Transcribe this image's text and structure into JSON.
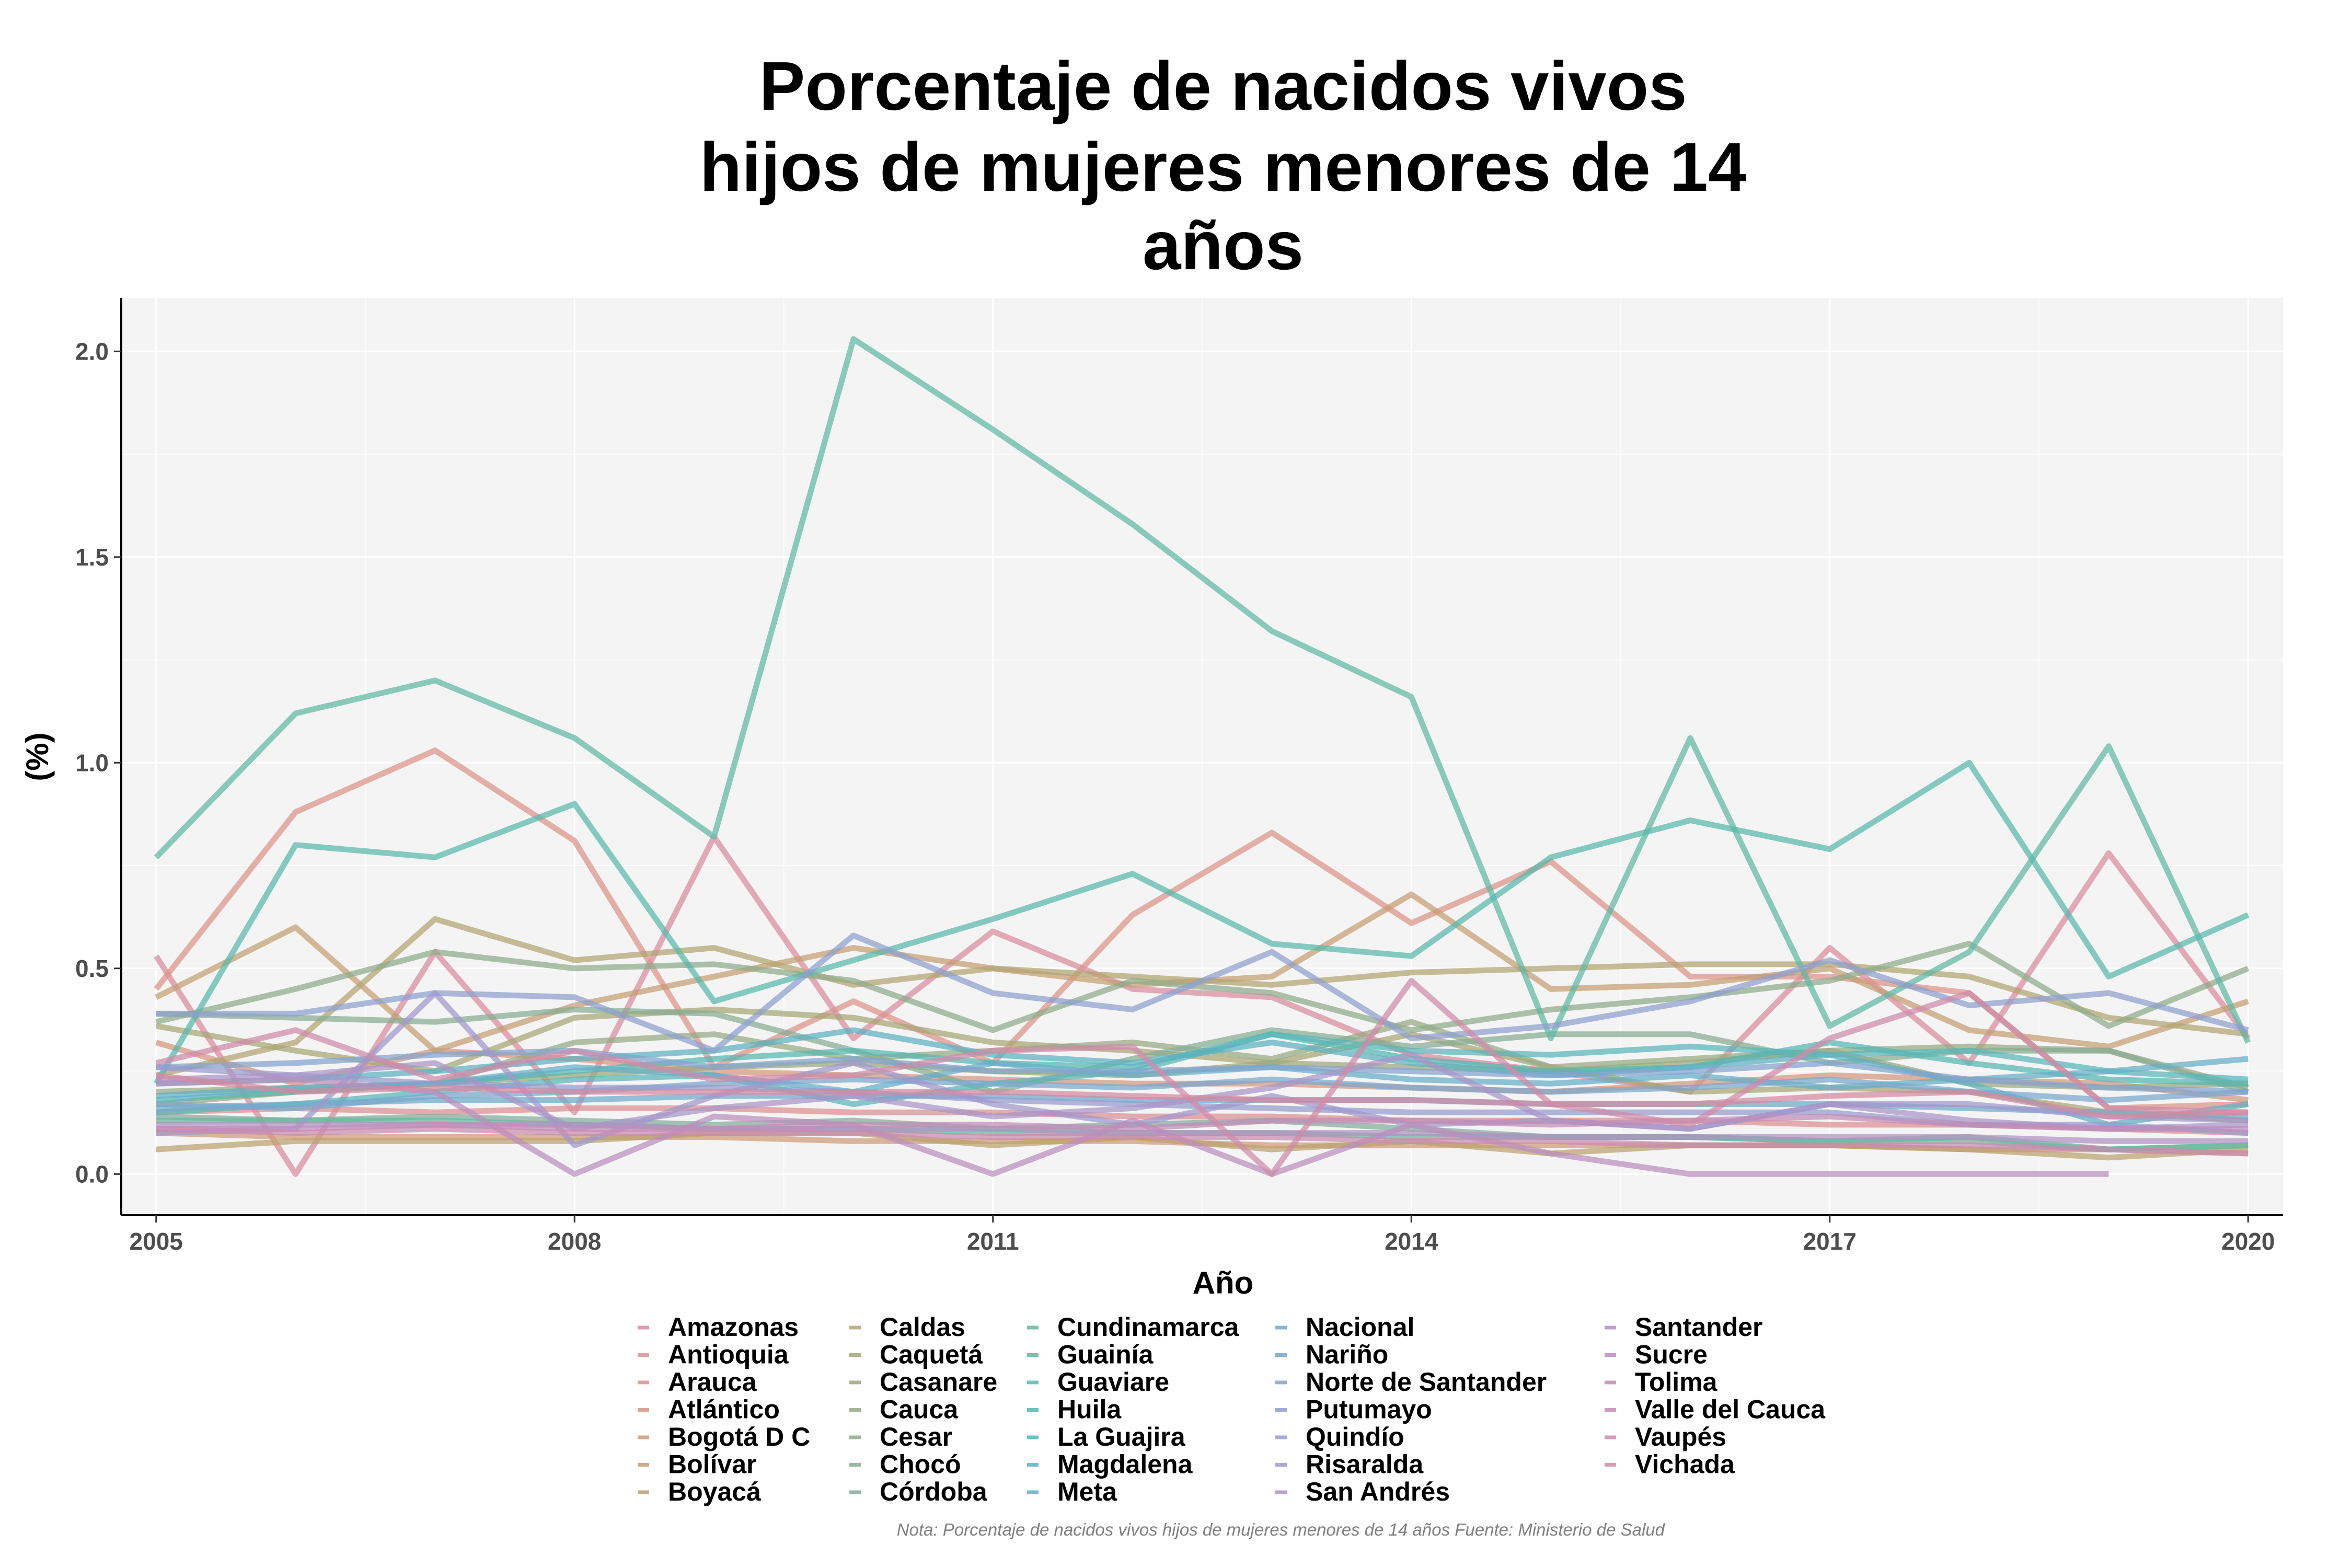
{
  "chart_data": {
    "type": "line",
    "title": [
      "Porcentaje de nacidos vivos",
      "hijos de mujeres menores de 14",
      "años"
    ],
    "xlabel": "Año",
    "ylabel": "(%)",
    "xlim": [
      2004.75,
      2020.25
    ],
    "ylim": [
      -0.1,
      2.13
    ],
    "x_ticks": [
      2005,
      2008,
      2011,
      2014,
      2017,
      2020
    ],
    "y_ticks": [
      0.0,
      0.5,
      1.0,
      1.5,
      2.0
    ],
    "y_tick_labels": [
      "0.0",
      "0.5",
      "1.0",
      "1.5",
      "2.0"
    ],
    "grid": true,
    "legend_position": "bottom",
    "note": "Nota: Porcentaje de nacidos vivos hijos de mujeres menores de 14 años Fuente: Ministerio de Salud",
    "x": [
      2005,
      2006,
      2007,
      2008,
      2009,
      2010,
      2011,
      2012,
      2013,
      2014,
      2015,
      2016,
      2017,
      2018,
      2019,
      2020
    ],
    "series": [
      {
        "name": "Amazonas",
        "color": "#D98A9E",
        "values": [
          0.53,
          0.0,
          0.54,
          0.15,
          0.82,
          0.33,
          0.59,
          0.45,
          0.43,
          0.29,
          0.25,
          0.2,
          0.55,
          0.27,
          0.78,
          0.33
        ]
      },
      {
        "name": "Antioquia",
        "color": "#DC8F93",
        "values": [
          0.15,
          0.16,
          0.15,
          0.16,
          0.16,
          0.15,
          0.15,
          0.14,
          0.14,
          0.13,
          0.13,
          0.13,
          0.12,
          0.12,
          0.11,
          0.1
        ]
      },
      {
        "name": "Arauca",
        "color": "#DB9388",
        "values": [
          0.45,
          0.88,
          1.03,
          0.81,
          0.26,
          0.42,
          0.27,
          0.63,
          0.83,
          0.61,
          0.76,
          0.48,
          0.48,
          0.44,
          0.16,
          0.17
        ]
      },
      {
        "name": "Atlántico",
        "color": "#D6977E",
        "values": [
          0.32,
          0.22,
          0.3,
          0.28,
          0.25,
          0.24,
          0.23,
          0.22,
          0.22,
          0.21,
          0.2,
          0.22,
          0.24,
          0.23,
          0.22,
          0.18
        ]
      },
      {
        "name": "Bogotá D C",
        "color": "#CE9B77",
        "values": [
          0.1,
          0.09,
          0.09,
          0.09,
          0.09,
          0.08,
          0.08,
          0.08,
          0.07,
          0.07,
          0.07,
          0.07,
          0.07,
          0.06,
          0.06,
          0.05
        ]
      },
      {
        "name": "Bolívar",
        "color": "#C59E72",
        "values": [
          0.43,
          0.6,
          0.3,
          0.41,
          0.48,
          0.55,
          0.5,
          0.46,
          0.48,
          0.68,
          0.45,
          0.46,
          0.5,
          0.35,
          0.31,
          0.42
        ]
      },
      {
        "name": "Boyacá",
        "color": "#BBA16F",
        "values": [
          0.06,
          0.08,
          0.08,
          0.08,
          0.1,
          0.1,
          0.07,
          0.09,
          0.06,
          0.08,
          0.05,
          0.07,
          0.07,
          0.06,
          0.04,
          0.06
        ]
      },
      {
        "name": "Caldas",
        "color": "#B2A470",
        "values": [
          0.24,
          0.32,
          0.62,
          0.52,
          0.55,
          0.46,
          0.5,
          0.48,
          0.46,
          0.49,
          0.5,
          0.51,
          0.51,
          0.48,
          0.38,
          0.34
        ]
      },
      {
        "name": "Caquetá",
        "color": "#A8A674",
        "values": [
          0.36,
          0.3,
          0.25,
          0.38,
          0.4,
          0.38,
          0.32,
          0.3,
          0.27,
          0.34,
          0.26,
          0.2,
          0.21,
          0.2,
          0.15,
          0.13
        ]
      },
      {
        "name": "Casanare",
        "color": "#9EA87A",
        "values": [
          0.17,
          0.2,
          0.22,
          0.24,
          0.26,
          0.27,
          0.25,
          0.24,
          0.27,
          0.26,
          0.25,
          0.27,
          0.3,
          0.22,
          0.21,
          0.22
        ]
      },
      {
        "name": "Cauca",
        "color": "#95AA82",
        "values": [
          0.2,
          0.21,
          0.22,
          0.32,
          0.34,
          0.28,
          0.3,
          0.32,
          0.28,
          0.37,
          0.26,
          0.28,
          0.3,
          0.31,
          0.3,
          0.21
        ]
      },
      {
        "name": "Cesar",
        "color": "#8DAB89",
        "values": [
          0.37,
          0.45,
          0.54,
          0.5,
          0.51,
          0.47,
          0.35,
          0.47,
          0.44,
          0.35,
          0.4,
          0.43,
          0.47,
          0.56,
          0.36,
          0.5
        ]
      },
      {
        "name": "Chocó",
        "color": "#86AC92",
        "values": [
          0.39,
          0.38,
          0.37,
          0.4,
          0.39,
          0.3,
          0.2,
          0.28,
          0.35,
          0.31,
          0.34,
          0.34,
          0.27,
          0.3,
          0.3,
          0.2
        ]
      },
      {
        "name": "Córdoba",
        "color": "#82AD9B",
        "values": [
          0.14,
          0.13,
          0.14,
          0.13,
          0.12,
          0.13,
          0.11,
          0.12,
          0.13,
          0.11,
          0.09,
          0.09,
          0.08,
          0.08,
          0.06,
          0.07
        ]
      },
      {
        "name": "Cundinamarca",
        "color": "#67B99C",
        "values": [
          0.13,
          0.13,
          0.13,
          0.12,
          0.11,
          0.11,
          0.1,
          0.1,
          0.1,
          0.09,
          0.09,
          0.09,
          0.08,
          0.09,
          0.06,
          0.07
        ]
      },
      {
        "name": "Guainía",
        "color": "#5EB9A4",
        "values": [
          0.77,
          1.12,
          1.2,
          1.06,
          0.82,
          2.03,
          1.81,
          1.58,
          1.32,
          1.16,
          0.33,
          1.06,
          0.36,
          0.54,
          1.04,
          0.32
        ]
      },
      {
        "name": "Guaviare",
        "color": "#58B8AC",
        "values": [
          0.22,
          0.8,
          0.77,
          0.9,
          0.42,
          0.52,
          0.62,
          0.73,
          0.56,
          0.53,
          0.77,
          0.86,
          0.79,
          1.0,
          0.48,
          0.63
        ]
      },
      {
        "name": "Huila",
        "color": "#55B7B3",
        "values": [
          0.18,
          0.2,
          0.22,
          0.25,
          0.28,
          0.3,
          0.27,
          0.26,
          0.34,
          0.28,
          0.25,
          0.26,
          0.32,
          0.27,
          0.23,
          0.22
        ]
      },
      {
        "name": "La Guajira",
        "color": "#57B5BA",
        "values": [
          0.15,
          0.17,
          0.2,
          0.23,
          0.24,
          0.17,
          0.22,
          0.25,
          0.34,
          0.3,
          0.29,
          0.31,
          0.29,
          0.3,
          0.25,
          0.23
        ]
      },
      {
        "name": "Magdalena",
        "color": "#5CB2C1",
        "values": [
          0.22,
          0.23,
          0.25,
          0.28,
          0.3,
          0.35,
          0.29,
          0.27,
          0.32,
          0.27,
          0.24,
          0.26,
          0.29,
          0.22,
          0.12,
          0.17
        ]
      },
      {
        "name": "Meta",
        "color": "#64AFC6",
        "values": [
          0.19,
          0.21,
          0.22,
          0.26,
          0.24,
          0.2,
          0.27,
          0.24,
          0.26,
          0.23,
          0.22,
          0.24,
          0.21,
          0.23,
          0.25,
          0.28
        ]
      },
      {
        "name": "Nacional",
        "color": "#6DABCA",
        "values": [
          0.16,
          0.17,
          0.18,
          0.18,
          0.19,
          0.19,
          0.19,
          0.18,
          0.18,
          0.18,
          0.17,
          0.17,
          0.17,
          0.16,
          0.15,
          0.14
        ]
      },
      {
        "name": "Nariño",
        "color": "#78A7CD",
        "values": [
          0.17,
          0.16,
          0.19,
          0.2,
          0.22,
          0.23,
          0.22,
          0.21,
          0.23,
          0.21,
          0.2,
          0.21,
          0.23,
          0.2,
          0.18,
          0.2
        ]
      },
      {
        "name": "Norte de Santander",
        "color": "#82A3CF",
        "values": [
          0.26,
          0.27,
          0.29,
          0.3,
          0.26,
          0.28,
          0.25,
          0.25,
          0.26,
          0.25,
          0.24,
          0.25,
          0.27,
          0.23,
          0.21,
          0.2
        ]
      },
      {
        "name": "Putumayo",
        "color": "#8D9FCF",
        "values": [
          0.39,
          0.39,
          0.44,
          0.43,
          0.3,
          0.58,
          0.44,
          0.4,
          0.54,
          0.33,
          0.36,
          0.42,
          0.52,
          0.41,
          0.44,
          0.35
        ]
      },
      {
        "name": "Quindío",
        "color": "#979BCE",
        "values": [
          0.26,
          0.24,
          0.22,
          0.21,
          0.21,
          0.2,
          0.18,
          0.17,
          0.16,
          0.15,
          0.15,
          0.15,
          0.15,
          0.12,
          0.12,
          0.1
        ]
      },
      {
        "name": "Risaralda",
        "color": "#A097CC",
        "values": [
          0.1,
          0.11,
          0.44,
          0.07,
          0.19,
          0.27,
          0.17,
          0.12,
          0.19,
          0.12,
          0.13,
          0.11,
          0.17,
          0.17,
          0.14,
          0.13
        ]
      },
      {
        "name": "San Andrés",
        "color": "#A994C8",
        "values": [
          0.23,
          0.24,
          0.27,
          0.11,
          0.16,
          0.19,
          0.14,
          0.16,
          0.21,
          0.29,
          0.13,
          0.11,
          0.17,
          0.13,
          0.11,
          0.12
        ]
      },
      {
        "name": "Santander",
        "color": "#B291C4",
        "values": [
          0.12,
          0.12,
          0.12,
          0.12,
          0.11,
          0.11,
          0.11,
          0.1,
          0.1,
          0.1,
          0.09,
          0.09,
          0.09,
          0.09,
          0.08,
          0.08
        ]
      },
      {
        "name": "Sucre",
        "color": "#BA8EBE",
        "values": [
          0.22,
          0.23,
          0.2,
          0.0,
          0.14,
          0.12,
          0.0,
          0.13,
          0.0,
          0.12,
          0.05,
          0.0,
          0.0,
          0.0,
          0.0,
          null
        ]
      },
      {
        "name": "Tolima",
        "color": "#C28CB8",
        "values": [
          0.11,
          0.11,
          0.12,
          0.11,
          0.11,
          0.12,
          0.12,
          0.11,
          0.13,
          0.13,
          0.12,
          0.13,
          0.14,
          0.12,
          0.11,
          0.11
        ]
      },
      {
        "name": "Valle del Cauca",
        "color": "#C98BB1",
        "values": [
          0.11,
          0.1,
          0.11,
          0.1,
          0.1,
          0.1,
          0.09,
          0.09,
          0.09,
          0.08,
          0.08,
          0.07,
          0.07,
          0.07,
          0.06,
          0.05
        ]
      },
      {
        "name": "Vaupés",
        "color": "#CF8AA9",
        "values": [
          0.27,
          0.35,
          0.23,
          0.3,
          0.23,
          0.24,
          0.3,
          0.31,
          0.0,
          0.47,
          0.17,
          0.12,
          0.33,
          0.44,
          0.16,
          0.15
        ]
      },
      {
        "name": "Vichada",
        "color": "#D489A1",
        "values": [
          0.24,
          0.2,
          0.21,
          0.2,
          0.2,
          0.2,
          0.2,
          0.19,
          0.18,
          0.18,
          0.17,
          0.17,
          0.19,
          0.2,
          0.14,
          0.15
        ]
      }
    ]
  }
}
